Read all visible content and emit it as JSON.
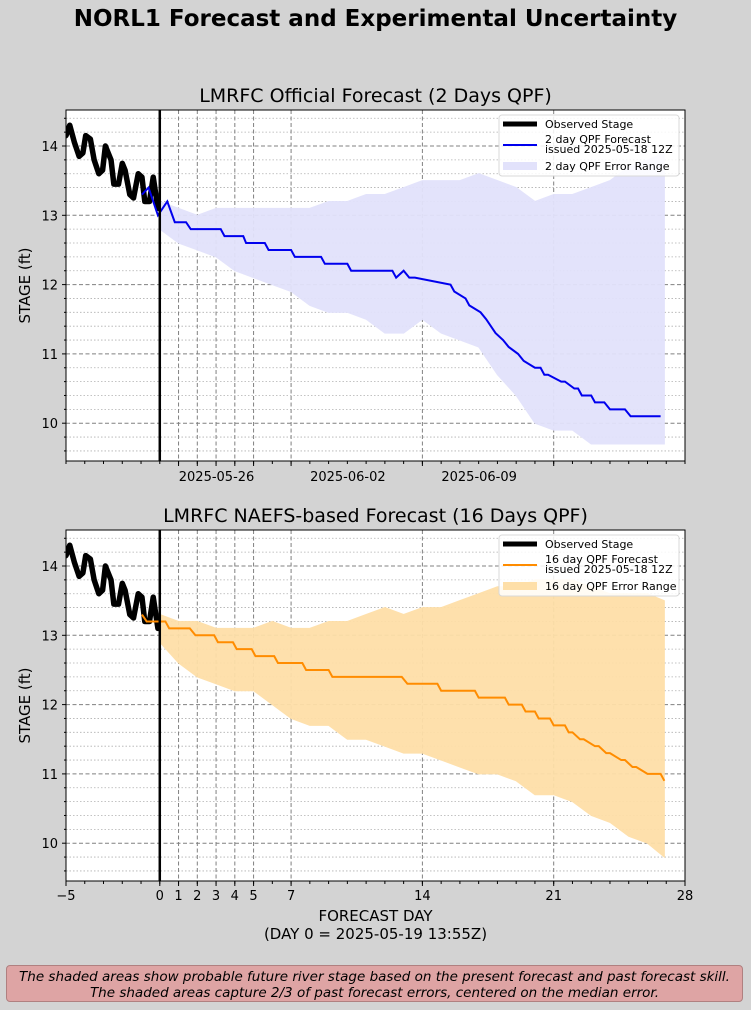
{
  "suptitle": "NORL1 Forecast and Experimental Uncertainty",
  "footnote": {
    "line1": "The shaded areas show probable future river stage based on the present forecast and past forecast skill.",
    "line2": "The shaded areas capture 2/3 of past forecast errors, centered on the median error."
  },
  "chart_data": [
    {
      "type": "line",
      "title": "LMRFC Official Forecast (2 Days QPF)",
      "xlabel": "",
      "ylabel": "STAGE (ft)",
      "xlim": [
        -5,
        28
      ],
      "ylim": [
        9.5,
        14.5
      ],
      "x_unit": "forecast day",
      "yticks": [
        10,
        11,
        12,
        13,
        14
      ],
      "xtick_labels": [
        {
          "x": 1,
          "label": "2025-05-26"
        },
        {
          "x": 8,
          "label": "2025-06-02"
        },
        {
          "x": 15,
          "label": "2025-06-09"
        }
      ],
      "xtick_dates_note": "x values are forecast days; labels show calendar dates",
      "major_gridlines_x": [
        1,
        2,
        3,
        4,
        5,
        7,
        14,
        21
      ],
      "grid": true,
      "day0_line": 0,
      "legend": {
        "position": "upper-right",
        "entries": [
          {
            "label": "Observed Stage",
            "type": "thick-line",
            "color": "#000000"
          },
          {
            "label": "2 day QPF Forecast\nissued 2025-05-18 12Z",
            "type": "line",
            "color": "#0000ee"
          },
          {
            "label": "2 day QPF Error Range",
            "type": "band",
            "color": "#e2e2fb"
          }
        ]
      },
      "observed": {
        "name": "Observed Stage",
        "color": "#000000",
        "x": [
          -5.0,
          -4.8,
          -4.55,
          -4.3,
          -4.1,
          -3.95,
          -3.7,
          -3.5,
          -3.25,
          -3.05,
          -2.9,
          -2.6,
          -2.45,
          -2.2,
          -2.0,
          -1.85,
          -1.6,
          -1.4,
          -1.15,
          -0.95,
          -0.8,
          -0.55,
          -0.35,
          -0.1
        ],
        "y": [
          14.15,
          14.3,
          14.05,
          13.85,
          13.9,
          14.15,
          14.1,
          13.8,
          13.6,
          13.65,
          14.0,
          13.8,
          13.45,
          13.45,
          13.75,
          13.65,
          13.3,
          13.25,
          13.6,
          13.55,
          13.2,
          13.2,
          13.55,
          13.1
        ]
      },
      "forecast": {
        "name": "2 day QPF Forecast issued 2025-05-18 12Z",
        "color": "#0000ee",
        "x": [
          -0.95,
          -0.6,
          -0.1,
          0.4,
          0.8,
          1.4,
          1.65,
          3.25,
          3.45,
          4.45,
          4.6,
          5.6,
          5.8,
          7.0,
          7.2,
          8.6,
          8.8,
          10.0,
          10.2,
          12.4,
          12.6,
          13.0,
          13.3,
          13.6,
          15.5,
          15.7,
          16.3,
          16.5,
          17.1,
          17.4,
          17.9,
          18.3,
          18.6,
          19.1,
          19.4,
          20.0,
          20.3,
          20.5,
          20.7,
          21.4,
          21.6,
          22.1,
          22.3,
          22.5,
          23.0,
          23.2,
          23.7,
          24.0,
          24.8,
          25.1,
          26.1,
          26.4,
          26.7
        ],
        "y": [
          13.3,
          13.4,
          13.0,
          13.2,
          12.9,
          12.9,
          12.8,
          12.8,
          12.7,
          12.7,
          12.6,
          12.6,
          12.5,
          12.5,
          12.4,
          12.4,
          12.3,
          12.3,
          12.2,
          12.2,
          12.1,
          12.2,
          12.1,
          12.1,
          12.0,
          11.9,
          11.8,
          11.7,
          11.6,
          11.5,
          11.3,
          11.2,
          11.1,
          11.0,
          10.9,
          10.8,
          10.8,
          10.7,
          10.7,
          10.6,
          10.6,
          10.5,
          10.5,
          10.4,
          10.4,
          10.3,
          10.3,
          10.2,
          10.2,
          10.1,
          10.1,
          10.1,
          10.1
        ]
      },
      "error_band": {
        "name": "2 day QPF Error Range",
        "color": "#e2e2fb",
        "x": [
          0.0,
          1.0,
          2.0,
          3.0,
          4.0,
          5.0,
          6.0,
          7.0,
          8.0,
          9.0,
          10.0,
          11.0,
          12.0,
          13.0,
          14.0,
          15.0,
          16.0,
          17.0,
          18.0,
          19.0,
          20.0,
          21.0,
          22.0,
          23.0,
          24.0,
          25.0,
          26.0,
          26.9
        ],
        "upper": [
          13.2,
          13.1,
          13.0,
          13.1,
          13.1,
          13.1,
          13.1,
          13.1,
          13.1,
          13.2,
          13.2,
          13.3,
          13.3,
          13.4,
          13.5,
          13.5,
          13.5,
          13.6,
          13.5,
          13.4,
          13.2,
          13.3,
          13.3,
          13.4,
          13.5,
          13.7,
          13.8,
          13.9
        ],
        "lower": [
          12.8,
          12.6,
          12.5,
          12.4,
          12.2,
          12.1,
          12.0,
          11.9,
          11.7,
          11.6,
          11.6,
          11.5,
          11.3,
          11.3,
          11.5,
          11.3,
          11.2,
          11.1,
          10.7,
          10.4,
          10.0,
          9.9,
          9.9,
          9.7,
          9.7,
          9.7,
          9.7,
          9.7
        ]
      }
    },
    {
      "type": "line",
      "title": "LMRFC NAEFS-based Forecast (16 Days QPF)",
      "xlabel": "FORECAST DAY",
      "xlabel_sub": "(DAY 0 = 2025-05-19 13:55Z)",
      "ylabel": "STAGE (ft)",
      "xlim": [
        -5,
        28
      ],
      "ylim": [
        9.5,
        14.5
      ],
      "yticks": [
        10,
        11,
        12,
        13,
        14
      ],
      "xticks": [
        -5,
        0,
        1,
        2,
        3,
        4,
        5,
        7,
        14,
        21,
        28
      ],
      "xtick_labels": [
        "−5",
        "0",
        "1",
        "2",
        "3",
        "4",
        "5",
        "7",
        "14",
        "21",
        "28"
      ],
      "major_gridlines_x": [
        1,
        2,
        3,
        4,
        5,
        7,
        14,
        21
      ],
      "grid": true,
      "day0_line": 0,
      "legend": {
        "position": "upper-right",
        "entries": [
          {
            "label": "Observed Stage",
            "type": "thick-line",
            "color": "#000000"
          },
          {
            "label": "16 day QPF Forecast\nissued 2025-05-18 12Z",
            "type": "line",
            "color": "#ff8c00"
          },
          {
            "label": "16 day QPF Error Range",
            "type": "band",
            "color": "#fedfa8"
          }
        ]
      },
      "observed": {
        "name": "Observed Stage",
        "color": "#000000",
        "x": [
          -5.0,
          -4.8,
          -4.55,
          -4.3,
          -4.1,
          -3.95,
          -3.7,
          -3.5,
          -3.25,
          -3.05,
          -2.9,
          -2.6,
          -2.45,
          -2.2,
          -2.0,
          -1.85,
          -1.6,
          -1.4,
          -1.15,
          -0.95,
          -0.8,
          -0.55,
          -0.35,
          -0.1
        ],
        "y": [
          14.15,
          14.3,
          14.05,
          13.85,
          13.9,
          14.15,
          14.1,
          13.8,
          13.6,
          13.65,
          14.0,
          13.8,
          13.45,
          13.45,
          13.75,
          13.65,
          13.3,
          13.25,
          13.6,
          13.55,
          13.2,
          13.2,
          13.55,
          13.1
        ]
      },
      "forecast": {
        "name": "16 day QPF Forecast issued 2025-05-18 12Z",
        "color": "#ff8c00",
        "x": [
          -0.95,
          -0.7,
          -0.2,
          0.3,
          0.5,
          1.6,
          1.9,
          2.9,
          3.1,
          3.9,
          4.1,
          4.9,
          5.1,
          6.1,
          6.3,
          7.6,
          7.8,
          9.0,
          9.2,
          10.8,
          11.0,
          12.9,
          13.2,
          14.8,
          15.0,
          16.8,
          17.0,
          18.4,
          18.6,
          19.3,
          19.5,
          20.0,
          20.2,
          20.8,
          21.0,
          21.6,
          21.8,
          22.0,
          22.4,
          22.6,
          23.2,
          23.4,
          23.8,
          24.0,
          24.6,
          24.8,
          25.2,
          25.4,
          26.0,
          26.2,
          26.7,
          26.9
        ],
        "y": [
          13.3,
          13.2,
          13.2,
          13.2,
          13.1,
          13.1,
          13.0,
          13.0,
          12.9,
          12.9,
          12.8,
          12.8,
          12.7,
          12.7,
          12.6,
          12.6,
          12.5,
          12.5,
          12.4,
          12.4,
          12.4,
          12.4,
          12.3,
          12.3,
          12.2,
          12.2,
          12.1,
          12.1,
          12.0,
          12.0,
          11.9,
          11.9,
          11.8,
          11.8,
          11.7,
          11.7,
          11.6,
          11.6,
          11.5,
          11.5,
          11.4,
          11.4,
          11.3,
          11.3,
          11.2,
          11.2,
          11.1,
          11.1,
          11.0,
          11.0,
          11.0,
          10.9
        ]
      },
      "error_band": {
        "name": "16 day QPF Error Range",
        "color": "#fedfa8",
        "x": [
          0.0,
          1.0,
          2.0,
          3.0,
          4.0,
          5.0,
          6.0,
          7.0,
          8.0,
          9.0,
          10.0,
          11.0,
          12.0,
          13.0,
          14.0,
          15.0,
          16.0,
          17.0,
          18.0,
          19.0,
          20.0,
          21.0,
          22.0,
          23.0,
          24.0,
          25.0,
          26.0,
          26.9
        ],
        "upper": [
          13.3,
          13.2,
          13.2,
          13.1,
          13.1,
          13.1,
          13.2,
          13.1,
          13.1,
          13.2,
          13.2,
          13.3,
          13.4,
          13.3,
          13.4,
          13.4,
          13.5,
          13.6,
          13.7,
          13.7,
          13.8,
          13.8,
          13.8,
          13.7,
          13.6,
          13.6,
          13.6,
          13.5
        ],
        "lower": [
          12.9,
          12.6,
          12.4,
          12.3,
          12.2,
          12.2,
          12.0,
          11.8,
          11.7,
          11.7,
          11.5,
          11.5,
          11.4,
          11.3,
          11.3,
          11.2,
          11.1,
          11.0,
          11.0,
          10.9,
          10.7,
          10.7,
          10.6,
          10.4,
          10.3,
          10.1,
          10.0,
          9.8
        ]
      }
    }
  ]
}
